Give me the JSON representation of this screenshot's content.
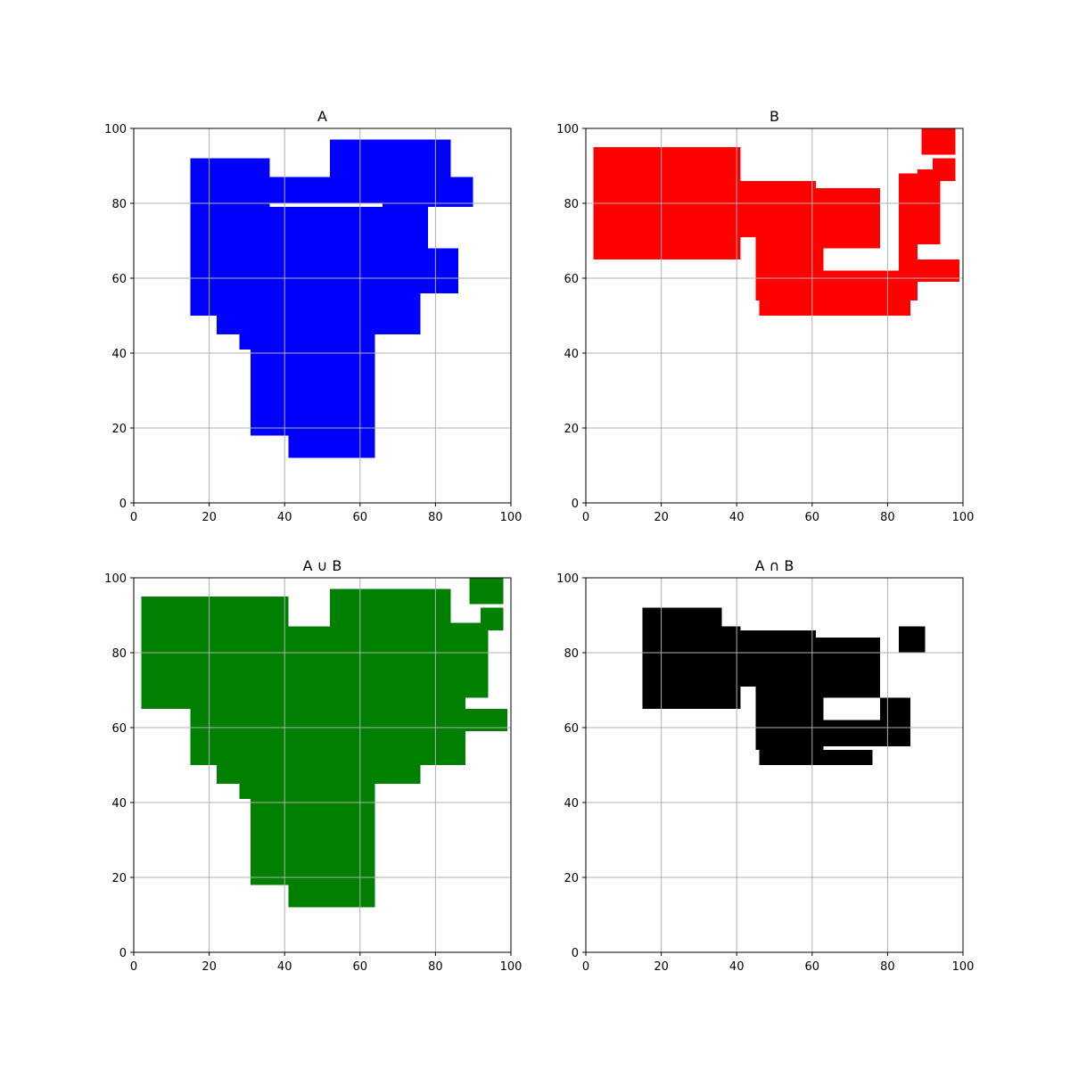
{
  "figure": {
    "background": "#ffffff"
  },
  "chart_data": [
    {
      "type": "area",
      "title": "A",
      "color": "#0000ff",
      "xlim": [
        0,
        100
      ],
      "ylim": [
        0,
        100
      ],
      "xticks": [
        0,
        20,
        40,
        60,
        80,
        100
      ],
      "yticks": [
        0,
        20,
        40,
        60,
        80,
        100
      ],
      "grid": true,
      "regions": [
        {
          "x": [
            15,
            36
          ],
          "y": [
            50,
            92
          ]
        },
        {
          "x": [
            36,
            90
          ],
          "y": [
            80,
            87
          ]
        },
        {
          "x": [
            52,
            84
          ],
          "y": [
            87,
            97
          ]
        },
        {
          "x": [
            84,
            90
          ],
          "y": [
            87,
            87
          ]
        },
        {
          "x": [
            15,
            36
          ],
          "y": [
            79,
            80
          ]
        },
        {
          "x": [
            66,
            90
          ],
          "y": [
            79,
            80
          ]
        },
        {
          "x": [
            22,
            78
          ],
          "y": [
            68,
            79
          ]
        },
        {
          "x": [
            22,
            86
          ],
          "y": [
            56,
            68
          ]
        },
        {
          "x": [
            22,
            76
          ],
          "y": [
            45,
            56
          ]
        },
        {
          "x": [
            28,
            64
          ],
          "y": [
            41,
            45
          ]
        },
        {
          "x": [
            31,
            64
          ],
          "y": [
            18,
            41
          ]
        },
        {
          "x": [
            41,
            64
          ],
          "y": [
            12,
            18
          ]
        }
      ]
    },
    {
      "type": "area",
      "title": "B",
      "color": "#ff0000",
      "xlim": [
        0,
        100
      ],
      "ylim": [
        0,
        100
      ],
      "xticks": [
        0,
        20,
        40,
        60,
        80,
        100
      ],
      "yticks": [
        0,
        20,
        40,
        60,
        80,
        100
      ],
      "grid": true,
      "regions": [
        {
          "x": [
            2,
            41
          ],
          "y": [
            65,
            95
          ]
        },
        {
          "x": [
            41,
            61
          ],
          "y": [
            71,
            86
          ]
        },
        {
          "x": [
            61,
            78
          ],
          "y": [
            68,
            84
          ]
        },
        {
          "x": [
            45,
            63
          ],
          "y": [
            54,
            71
          ]
        },
        {
          "x": [
            46,
            86
          ],
          "y": [
            50,
            54
          ]
        },
        {
          "x": [
            63,
            88
          ],
          "y": [
            54,
            62
          ]
        },
        {
          "x": [
            83,
            99
          ],
          "y": [
            59,
            65
          ]
        },
        {
          "x": [
            83,
            88
          ],
          "y": [
            65,
            88
          ]
        },
        {
          "x": [
            88,
            94
          ],
          "y": [
            69,
            89
          ]
        },
        {
          "x": [
            92,
            98
          ],
          "y": [
            86,
            92
          ]
        },
        {
          "x": [
            89,
            98
          ],
          "y": [
            93,
            100
          ]
        }
      ]
    },
    {
      "type": "area",
      "title": "A ∪ B",
      "color": "#008000",
      "xlim": [
        0,
        100
      ],
      "ylim": [
        0,
        100
      ],
      "xticks": [
        0,
        20,
        40,
        60,
        80,
        100
      ],
      "yticks": [
        0,
        20,
        40,
        60,
        80,
        100
      ],
      "grid": true,
      "regions": [
        {
          "x": [
            2,
            41
          ],
          "y": [
            65,
            95
          ]
        },
        {
          "x": [
            15,
            78
          ],
          "y": [
            50,
            87
          ]
        },
        {
          "x": [
            52,
            84
          ],
          "y": [
            87,
            97
          ]
        },
        {
          "x": [
            78,
            94
          ],
          "y": [
            68,
            88
          ]
        },
        {
          "x": [
            83,
            99
          ],
          "y": [
            59,
            65
          ]
        },
        {
          "x": [
            78,
            88
          ],
          "y": [
            50,
            68
          ]
        },
        {
          "x": [
            22,
            76
          ],
          "y": [
            45,
            56
          ]
        },
        {
          "x": [
            28,
            64
          ],
          "y": [
            41,
            45
          ]
        },
        {
          "x": [
            31,
            64
          ],
          "y": [
            18,
            41
          ]
        },
        {
          "x": [
            41,
            64
          ],
          "y": [
            12,
            18
          ]
        },
        {
          "x": [
            92,
            98
          ],
          "y": [
            86,
            92
          ]
        },
        {
          "x": [
            89,
            98
          ],
          "y": [
            93,
            100
          ]
        }
      ]
    },
    {
      "type": "area",
      "title": "A ∩ B",
      "color": "#000000",
      "xlim": [
        0,
        100
      ],
      "ylim": [
        0,
        100
      ],
      "xticks": [
        0,
        20,
        40,
        60,
        80,
        100
      ],
      "yticks": [
        0,
        20,
        40,
        60,
        80,
        100
      ],
      "grid": true,
      "regions": [
        {
          "x": [
            15,
            36
          ],
          "y": [
            65,
            92
          ]
        },
        {
          "x": [
            36,
            41
          ],
          "y": [
            65,
            87
          ]
        },
        {
          "x": [
            41,
            61
          ],
          "y": [
            71,
            86
          ]
        },
        {
          "x": [
            61,
            78
          ],
          "y": [
            68,
            84
          ]
        },
        {
          "x": [
            45,
            63
          ],
          "y": [
            54,
            71
          ]
        },
        {
          "x": [
            46,
            76
          ],
          "y": [
            50,
            54
          ]
        },
        {
          "x": [
            63,
            86
          ],
          "y": [
            55,
            62
          ]
        },
        {
          "x": [
            78,
            86
          ],
          "y": [
            62,
            68
          ]
        },
        {
          "x": [
            83,
            90
          ],
          "y": [
            80,
            87
          ]
        }
      ]
    }
  ]
}
